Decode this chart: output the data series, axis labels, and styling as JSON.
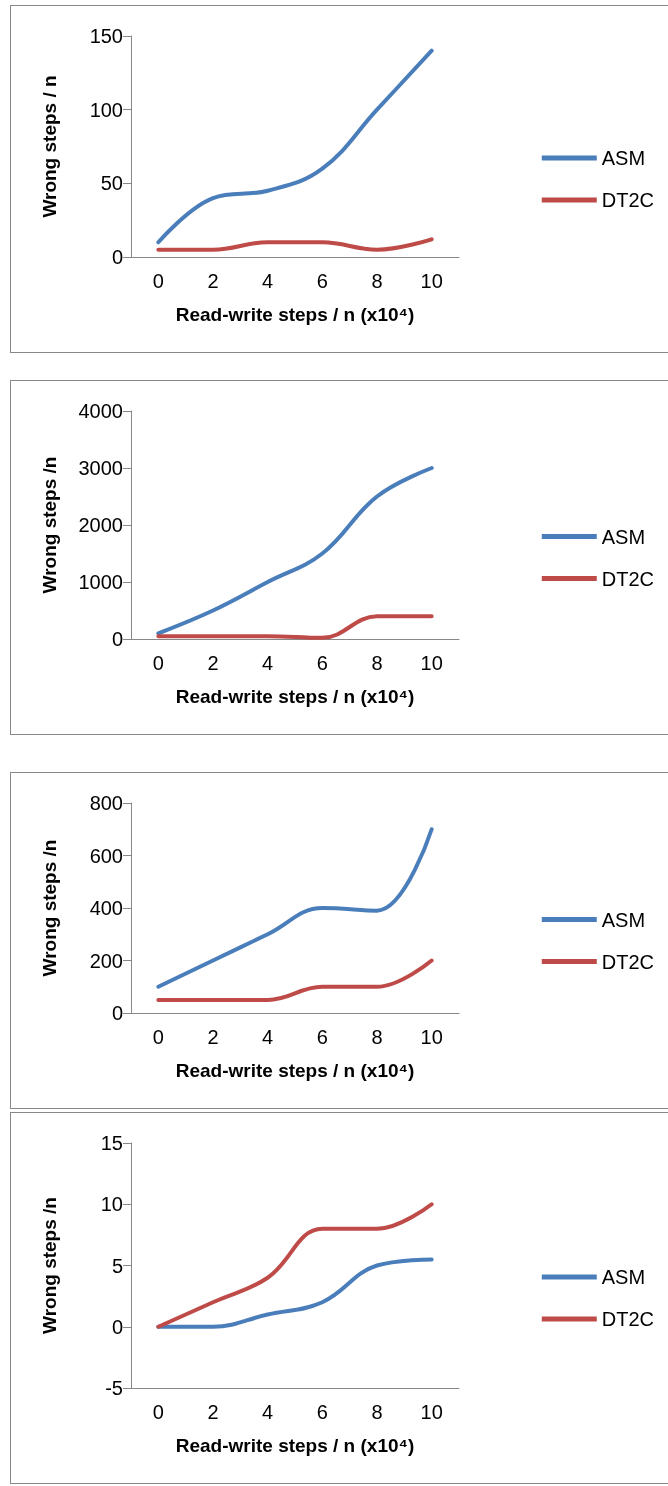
{
  "chart_data": [
    {
      "type": "line",
      "xlabel": "Read-write steps / n (x10⁴)",
      "ylabel": "Wrong steps / n",
      "categories": [
        "0",
        "2",
        "4",
        "6",
        "8",
        "10"
      ],
      "ylim": [
        0,
        150
      ],
      "yticks": [
        0,
        50,
        100,
        150
      ],
      "grid": false,
      "legend": "right",
      "marker": "none",
      "line_style": "solid",
      "series": [
        {
          "name": "ASM",
          "color": "#4a7ebb",
          "values": [
            10,
            40,
            45,
            60,
            100,
            140
          ]
        },
        {
          "name": "DT2C",
          "color": "#be4b48",
          "values": [
            5,
            5,
            10,
            10,
            5,
            12
          ]
        }
      ]
    },
    {
      "type": "line",
      "xlabel": "Read-write steps / n (x10⁴)",
      "ylabel": "Wrong steps /n",
      "categories": [
        "0",
        "2",
        "4",
        "6",
        "8",
        "10"
      ],
      "ylim": [
        0,
        4000
      ],
      "yticks": [
        0,
        1000,
        2000,
        3000,
        4000
      ],
      "grid": false,
      "legend": "right",
      "marker": "none",
      "line_style": "solid",
      "series": [
        {
          "name": "ASM",
          "color": "#4a7ebb",
          "values": [
            100,
            500,
            1000,
            1500,
            2500,
            3000
          ]
        },
        {
          "name": "DT2C",
          "color": "#be4b48",
          "values": [
            50,
            50,
            50,
            20,
            400,
            400
          ]
        }
      ]
    },
    {
      "type": "line",
      "xlabel": "Read-write steps / n (x10⁴)",
      "ylabel": "Wrong steps /n",
      "categories": [
        "0",
        "2",
        "4",
        "6",
        "8",
        "10"
      ],
      "ylim": [
        0,
        800
      ],
      "yticks": [
        0,
        200,
        400,
        600,
        800
      ],
      "grid": false,
      "legend": "right",
      "marker": "none",
      "line_style": "solid",
      "series": [
        {
          "name": "ASM",
          "color": "#4a7ebb",
          "values": [
            100,
            200,
            300,
            400,
            390,
            700
          ]
        },
        {
          "name": "DT2C",
          "color": "#be4b48",
          "values": [
            50,
            50,
            50,
            100,
            100,
            200
          ]
        }
      ]
    },
    {
      "type": "line",
      "xlabel": "Read-write steps / n (x10⁴)",
      "ylabel": "Wrong steps /n",
      "categories": [
        "0",
        "2",
        "4",
        "6",
        "8",
        "10"
      ],
      "ylim": [
        -5,
        15
      ],
      "yticks": [
        -5,
        0,
        5,
        10,
        15
      ],
      "grid": false,
      "legend": "right",
      "marker": "none",
      "line_style": "solid",
      "series": [
        {
          "name": "ASM",
          "color": "#4a7ebb",
          "values": [
            0,
            0,
            1,
            2,
            5,
            5.5
          ]
        },
        {
          "name": "DT2C",
          "color": "#be4b48",
          "values": [
            0,
            2,
            4,
            8,
            8,
            10
          ]
        }
      ]
    }
  ]
}
